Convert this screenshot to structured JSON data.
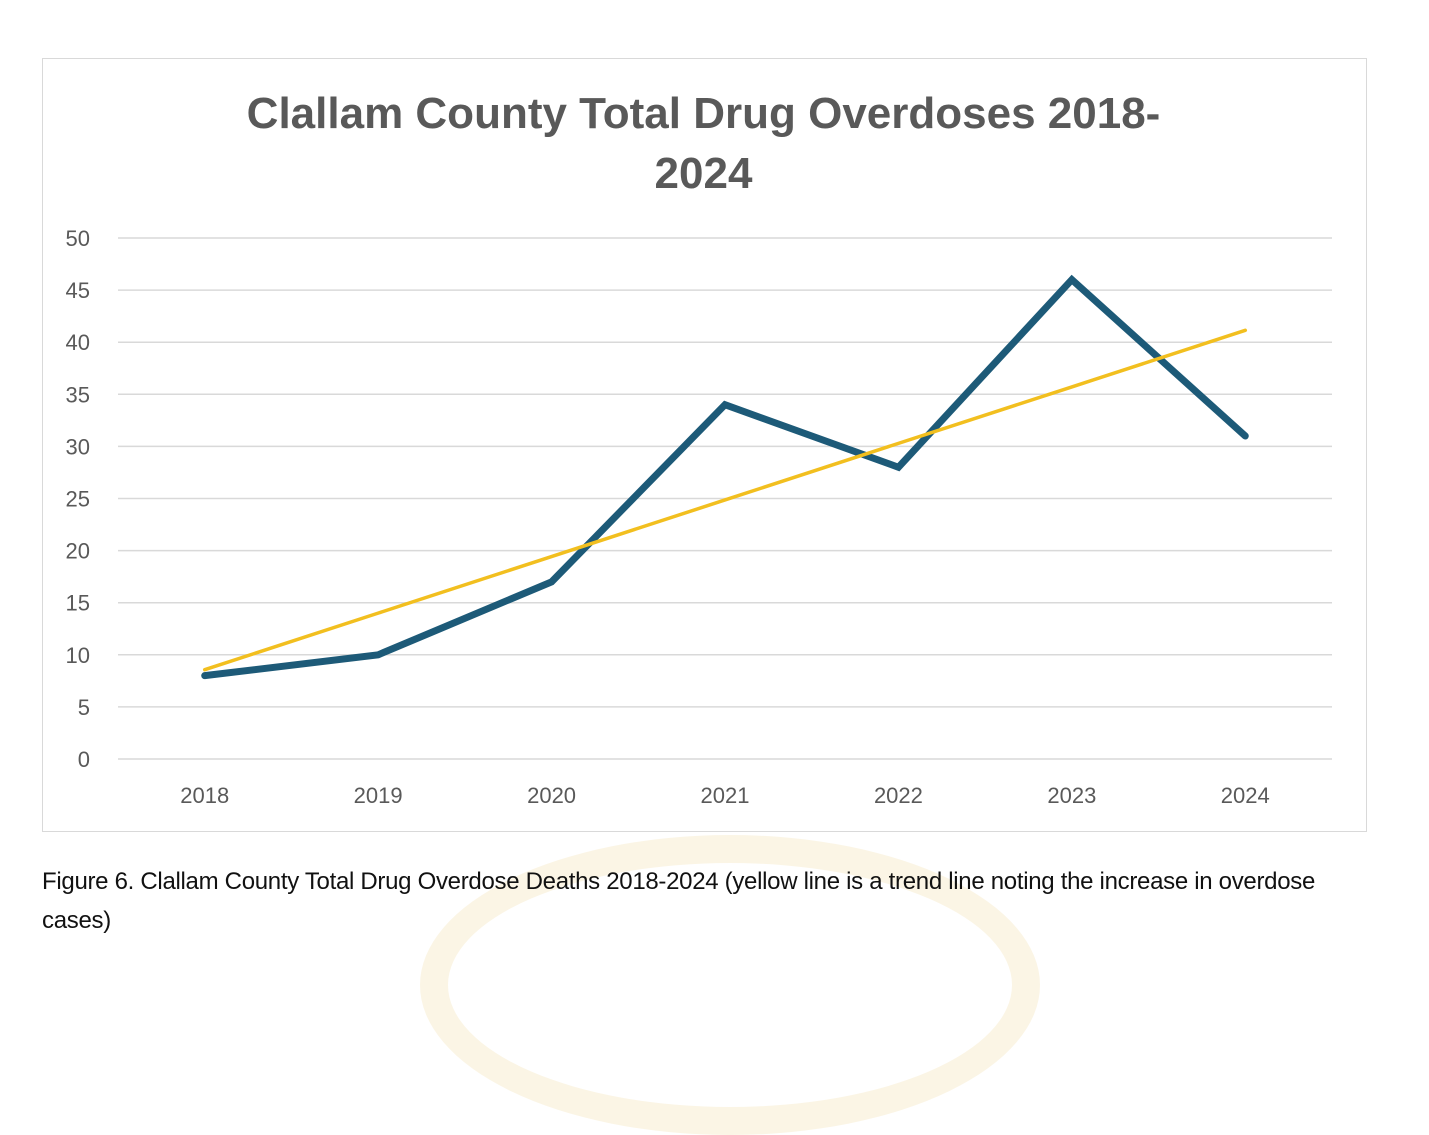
{
  "chart_data": {
    "type": "line",
    "title_lines": [
      "Clallam County Total Drug Overdoses 2018-",
      "2024"
    ],
    "categories": [
      "2018",
      "2019",
      "2020",
      "2021",
      "2022",
      "2023",
      "2024"
    ],
    "series": [
      {
        "values": [
          8,
          10,
          17,
          34,
          28,
          46,
          31
        ],
        "color": "#1d5a78",
        "kind": "data"
      },
      {
        "values": [
          8.57,
          14.0,
          19.43,
          24.86,
          30.29,
          35.71,
          41.14
        ],
        "color": "#f2bf1f",
        "kind": "linear trend"
      }
    ],
    "ylim": [
      0,
      50
    ],
    "yticks": [
      0,
      5,
      10,
      15,
      20,
      25,
      30,
      35,
      40,
      45,
      50
    ],
    "grid": true,
    "legend": "none"
  },
  "caption": "Figure 6. Clallam County Total Drug Overdose Deaths 2018-2024 (yellow line is a trend line noting the increase in overdose cases)"
}
